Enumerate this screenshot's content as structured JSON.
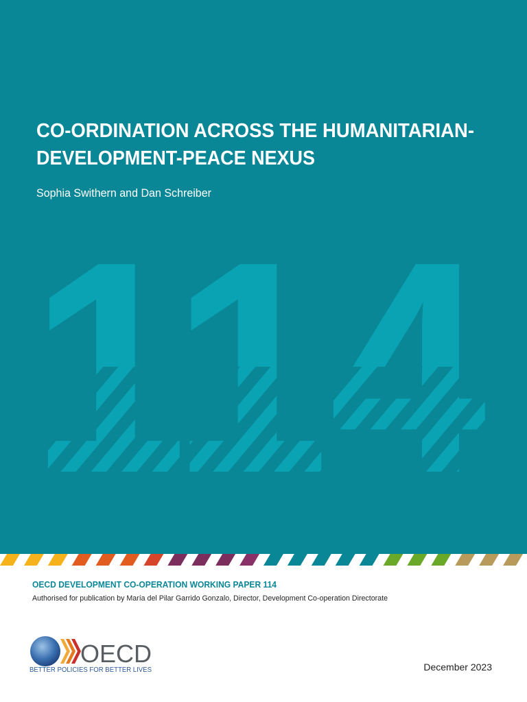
{
  "cover": {
    "title_lines": [
      "CO-ORDINATION ACROSS THE HUMANITARIAN-",
      "DEVELOPMENT-PEACE NEXUS"
    ],
    "authors": "Sophia Swithern and Dan Schreiber",
    "number": "114",
    "series": "OECD DEVELOPMENT CO-OPERATION WORKING PAPER 114",
    "authorisation": "Authorised for publication by María del Pilar Garrido Gonzalo, Director, Development Co-operation Directorate",
    "logo_text": "OECD",
    "tagline": "BETTER POLICIES FOR BETTER LIVES",
    "date": "December 2023"
  }
}
